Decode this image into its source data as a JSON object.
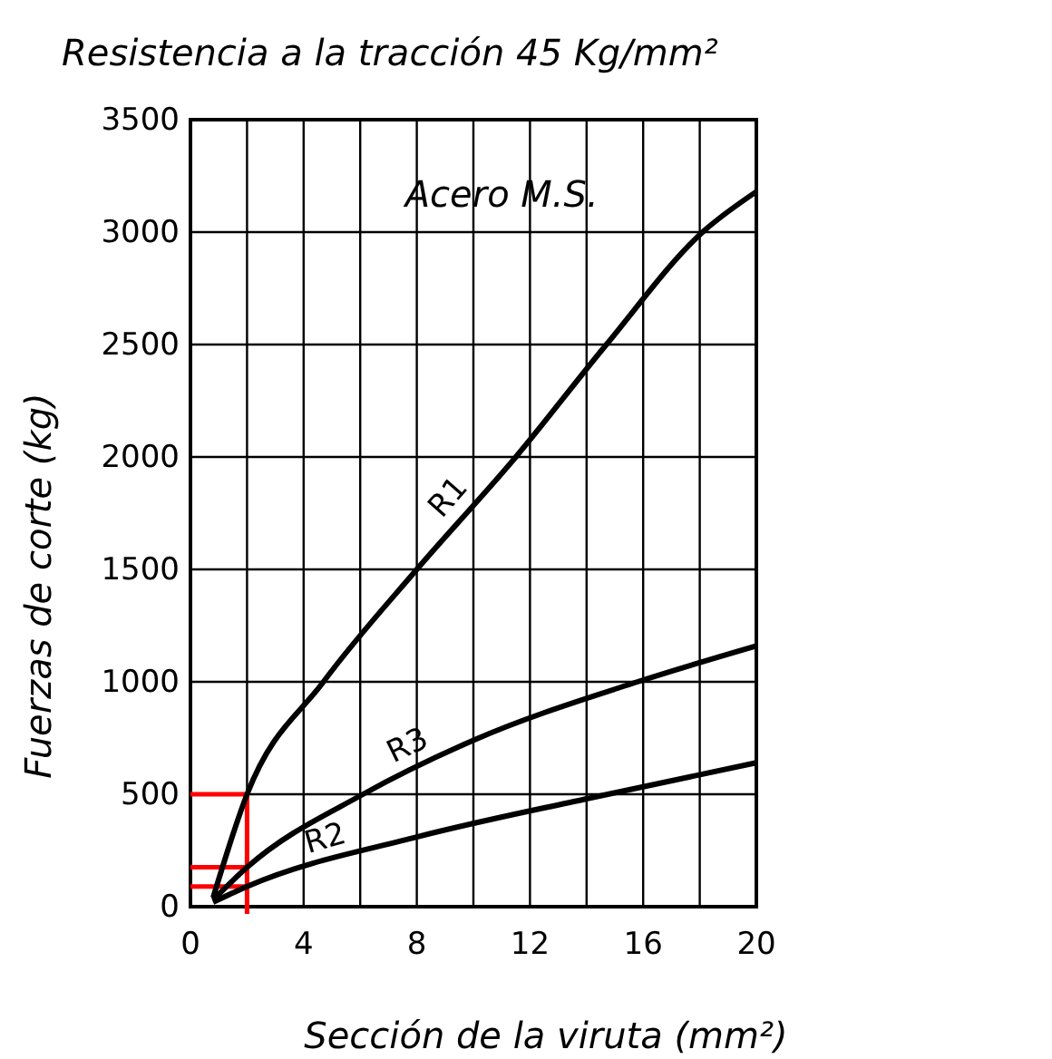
{
  "chart_data": {
    "type": "line",
    "title": "Resistencia a la tracción 45 Kg/mm²",
    "xlabel": "Sección de la viruta (mm²)",
    "ylabel": "Fuerzas de corte (kg)",
    "annotations": [
      "Acero M.S."
    ],
    "xlim": [
      0,
      20
    ],
    "ylim": [
      0,
      3500
    ],
    "xticks": [
      0,
      {
        "value": 2,
        "label": null
      },
      4,
      {
        "value": 6,
        "label": null
      },
      8,
      {
        "value": 10,
        "label": null
      },
      12,
      {
        "value": 14,
        "label": null
      },
      16,
      {
        "value": 18,
        "label": null
      },
      20
    ],
    "yticks": [
      0,
      500,
      1000,
      1500,
      2000,
      2500,
      3000,
      3500
    ],
    "grid": true,
    "line_style": "solid",
    "series": [
      {
        "name": "R1",
        "color": "#000000",
        "x": [
          0.8,
          2,
          4.7,
          8,
          11.5,
          14.7,
          18.1,
          20
        ],
        "values": [
          40,
          500,
          1000,
          1500,
          2000,
          2500,
          3000,
          3180
        ]
      },
      {
        "name": "R3",
        "color": "#000000",
        "x": [
          0.8,
          2,
          6.1,
          10,
          15.8,
          20
        ],
        "values": [
          30,
          175,
          500,
          740,
          1000,
          1160
        ]
      },
      {
        "name": "R2",
        "color": "#000000",
        "x": [
          0.8,
          2,
          8,
          14,
          20
        ],
        "values": [
          20,
          90,
          310,
          480,
          640
        ]
      }
    ],
    "ref_lines": [
      {
        "axis": "x",
        "value": 2,
        "color": "#ff0000"
      },
      {
        "axis": "y",
        "value": 500,
        "color": "#ff0000"
      },
      {
        "axis": "y",
        "value": 175,
        "color": "#ff0000"
      },
      {
        "axis": "y",
        "value": 90,
        "color": "#ff0000"
      }
    ]
  }
}
